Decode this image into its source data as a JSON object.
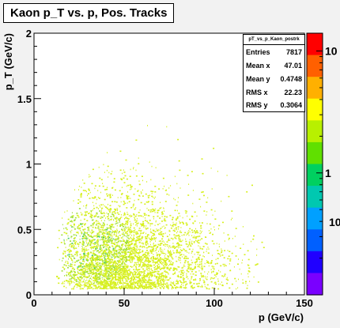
{
  "chart_data": {
    "type": "heatmap",
    "title": "Kaon p_T vs. p, Pos. Tracks",
    "xlabel": "p (GeV/c)",
    "ylabel": "p_T (GeV/c)",
    "xlim": [
      0,
      150
    ],
    "ylim": [
      0,
      2
    ],
    "x_ticks": [
      "0",
      "50",
      "100",
      "150"
    ],
    "y_ticks": [
      "0",
      "0.5",
      "1",
      "1.5",
      "2"
    ],
    "z_scale": "log",
    "z_ticks": [
      "1",
      "10"
    ],
    "z_ticks_partial": [
      "10"
    ],
    "palette": [
      "#ff0000",
      "#ff6000",
      "#ffb000",
      "#ffff00",
      "#b8f000",
      "#60e000",
      "#00d060",
      "#00c8b0",
      "#00a0ff",
      "#0060ff",
      "#2000ff",
      "#7a00ff"
    ],
    "colors": {
      "frame_bg": "#f2f2f2",
      "plot_bg": "#ffffff",
      "dot_low": "#d7f020",
      "dot_mid": "#9fe03a",
      "dot_high": "#44cc66"
    },
    "stats": {
      "name": "pT_vs_p_Kaon_postrk",
      "entries": {
        "label": "Entries",
        "value": "7817"
      },
      "mean_x": {
        "label": "Mean x",
        "value": "47.01"
      },
      "mean_y": {
        "label": "Mean y",
        "value": "0.4748"
      },
      "rms_x": {
        "label": "RMS x",
        "value": "22.23"
      },
      "rms_y": {
        "label": "RMS y",
        "value": "0.3064"
      }
    }
  }
}
